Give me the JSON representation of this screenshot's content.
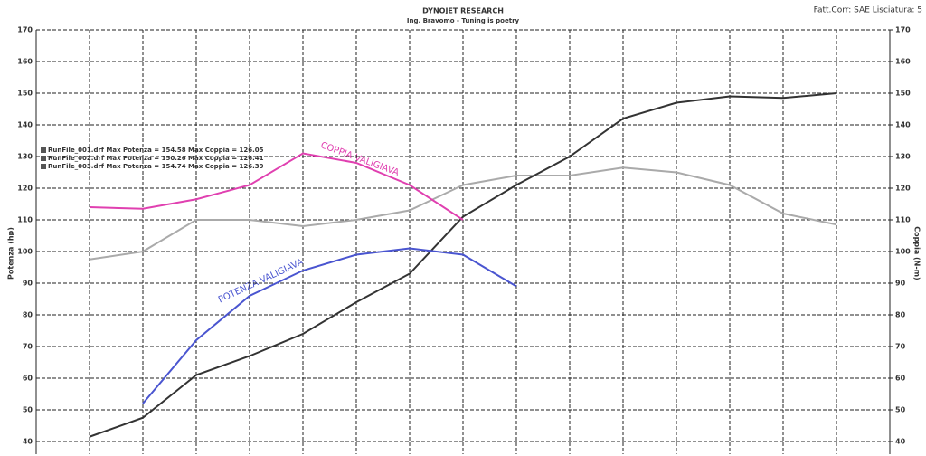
{
  "chart_data": {
    "type": "line",
    "title": "DYNOJET RESEARCH",
    "subtitle": "Ing. Bravomo - Tuning is poetry",
    "corner_note": "Fatt.Corr: SAE  Lisciatura: 5",
    "y_label": "Potenza (hp)",
    "y2_label": "Coppia (N-m)",
    "legend": [
      "RunFile_001.drf Max Potenza = 154.58    Max Coppia = 126.05",
      "RunFile_002.drf Max Potenza = 150.26    Max Coppia = 126.41",
      "RunFile_003.drf Max Potenza = 154.74    Max Coppia = 126.39"
    ],
    "annotations": [
      "COPPIA VALIGIAVA",
      "POTENZA VALIGIAVA"
    ],
    "categories": [
      null,
      null,
      null,
      null,
      null,
      null,
      null,
      null,
      null,
      null,
      null,
      null,
      null,
      null,
      null,
      null,
      null
    ],
    "series": [
      {
        "color": "#aaaaaa",
        "values": [
          null,
          97.5,
          100,
          110,
          110,
          108,
          110,
          113,
          121,
          124,
          124,
          126.5,
          125,
          121,
          112,
          108.5,
          null
        ]
      },
      {
        "color": "#333333",
        "values": [
          null,
          41.5,
          47.5,
          61,
          67,
          74,
          84,
          93,
          111,
          121,
          130,
          142,
          147,
          149,
          148.5,
          150,
          null
        ]
      },
      {
        "color": "#e040b0",
        "values": [
          null,
          114,
          113.5,
          116.5,
          121,
          131,
          128,
          121,
          110,
          null,
          null,
          null,
          null,
          null,
          null,
          null,
          null
        ]
      },
      {
        "color": "#4a55d0",
        "values": [
          null,
          null,
          52,
          72,
          86,
          94,
          99,
          101,
          99,
          89,
          null,
          null,
          null,
          null,
          null,
          null,
          null
        ]
      }
    ],
    "ylim": [
      36,
      170
    ],
    "yticks": [
      40,
      50,
      60,
      70,
      80,
      90,
      100,
      110,
      120,
      130,
      140,
      150,
      160,
      170
    ],
    "y2lim": [
      36,
      170
    ],
    "y2ticks": [
      40,
      50,
      60,
      70,
      80,
      90,
      100,
      110,
      120,
      130,
      140,
      150,
      160,
      170
    ],
    "grid": true
  }
}
